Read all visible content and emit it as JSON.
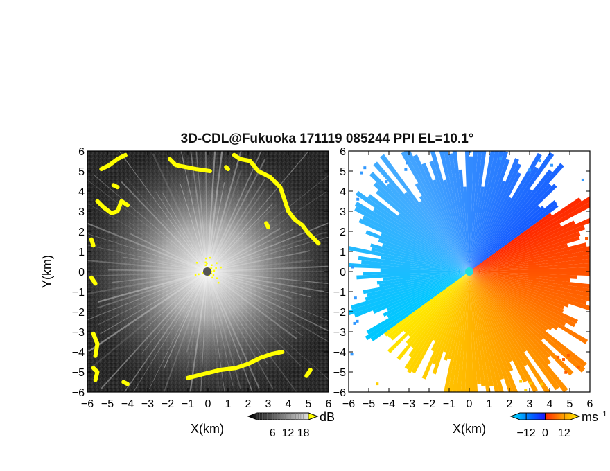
{
  "figure": {
    "title": "3D-CDL@Fukuoka 171119 085244 PPI EL=10.1°"
  },
  "chart_data": [
    {
      "type": "heatmap",
      "panel": "left",
      "xlabel": "X(km)",
      "ylabel": "Y(km)",
      "xlim": [
        -6,
        6
      ],
      "ylim": [
        -6,
        6
      ],
      "x_ticks": [
        "−6",
        "−5",
        "−4",
        "−3",
        "−2",
        "−1",
        "0",
        "1",
        "2",
        "3",
        "4",
        "5",
        "6"
      ],
      "y_ticks": [
        "−6",
        "−5",
        "−4",
        "−3",
        "−2",
        "−1",
        "0",
        "1",
        "2",
        "3",
        "4",
        "5",
        "6"
      ],
      "colorbar": {
        "label": "dB",
        "ticks": [
          "6",
          "12",
          "18"
        ],
        "range": [
          0,
          20
        ],
        "colors": [
          "#000000",
          "#ffffff"
        ],
        "over_color": "#ffff00"
      },
      "highlight_color": "#ffff00"
    },
    {
      "type": "heatmap",
      "panel": "right",
      "xlabel": "X(km)",
      "ylabel": "",
      "xlim": [
        -6,
        6
      ],
      "ylim": [
        -6,
        6
      ],
      "x_ticks": [
        "−6",
        "−5",
        "−4",
        "−3",
        "−2",
        "−1",
        "0",
        "1",
        "2",
        "3",
        "4",
        "5",
        "6"
      ],
      "y_ticks": [
        "−6",
        "−5",
        "−4",
        "−3",
        "−2",
        "−1",
        "0",
        "1",
        "2",
        "3",
        "4",
        "5",
        "6"
      ],
      "colorbar": {
        "label": "ms",
        "label_sup": "−1",
        "ticks": [
          "−12",
          "0",
          "12"
        ],
        "range": [
          -16,
          16
        ],
        "colors": [
          "#00e5ff",
          "#0066ff",
          "#1a1aff",
          "#ff2a00",
          "#ff9900",
          "#ffee00"
        ]
      }
    }
  ]
}
